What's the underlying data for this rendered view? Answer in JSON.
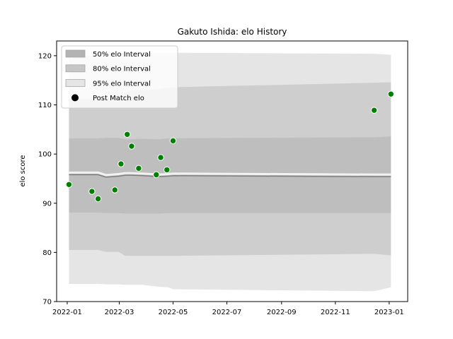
{
  "chart_data": {
    "type": "line",
    "title": "Gakuto Ishida: elo History",
    "xlabel": "",
    "ylabel": "elo score",
    "xlim": [
      "2021-12-20",
      "2023-01-22"
    ],
    "ylim": [
      70,
      123
    ],
    "x_ticks": [
      "2022-01",
      "2022-03",
      "2022-05",
      "2022-07",
      "2022-09",
      "2022-11",
      "2023-01"
    ],
    "y_ticks": [
      70,
      80,
      90,
      100,
      110,
      120
    ],
    "grid": false,
    "legend_position": "top-left",
    "colors": {
      "band_50": "#b3b3b3",
      "band_80": "#cccccc",
      "band_95": "#e5e5e5",
      "mean_line": "#808080",
      "points": "#008000",
      "point_edge": "#ffffff"
    },
    "legend": [
      {
        "key": "band_50",
        "label": "50% elo Interval"
      },
      {
        "key": "band_80",
        "label": "80% elo Interval"
      },
      {
        "key": "band_95",
        "label": "95% elo Interval"
      },
      {
        "key": "points",
        "label": "Post Match elo"
      }
    ],
    "x": [
      "2022-01-03",
      "2022-02-05",
      "2022-02-14",
      "2022-02-28",
      "2022-03-08",
      "2022-03-15",
      "2022-03-28",
      "2022-04-15",
      "2022-04-25",
      "2022-05-02",
      "2022-12-15",
      "2023-01-03"
    ],
    "bands": {
      "mean": [
        95.8,
        95.8,
        95.3,
        95.5,
        95.7,
        95.7,
        95.6,
        95.4,
        95.5,
        95.6,
        95.4,
        95.4
      ],
      "p50_low": [
        88.1,
        88.1,
        88.0,
        88.0,
        87.9,
        87.9,
        87.9,
        87.9,
        88.0,
        88.0,
        88.0,
        88.0
      ],
      "p50_high": [
        103.2,
        103.2,
        103.3,
        103.3,
        103.0,
        103.0,
        103.1,
        103.0,
        103.2,
        103.2,
        103.4,
        103.6
      ],
      "p80_low": [
        80.5,
        80.5,
        80.1,
        80.1,
        79.3,
        79.3,
        79.3,
        79.3,
        79.3,
        79.3,
        79.7,
        79.4
      ],
      "p80_high": [
        111.2,
        111.2,
        111.3,
        111.3,
        112.5,
        113.0,
        113.0,
        113.2,
        113.5,
        113.6,
        114.5,
        114.6
      ],
      "p95_low": [
        73.6,
        73.6,
        73.5,
        73.5,
        73.4,
        73.4,
        73.4,
        73.0,
        72.9,
        72.5,
        72.1,
        72.9
      ],
      "p95_high": [
        119.5,
        120.2,
        120.5,
        120.5,
        120.6,
        120.6,
        120.6,
        120.6,
        120.6,
        120.6,
        120.4,
        120.2
      ]
    },
    "series": [
      {
        "name": "Post Match elo",
        "x": [
          "2022-01-03",
          "2022-01-29",
          "2022-02-05",
          "2022-02-24",
          "2022-03-03",
          "2022-03-10",
          "2022-03-15",
          "2022-03-23",
          "2022-04-12",
          "2022-04-17",
          "2022-04-24",
          "2022-05-01",
          "2022-12-15",
          "2023-01-03"
        ],
        "values": [
          93.8,
          92.4,
          90.9,
          92.7,
          98.0,
          104.0,
          101.6,
          97.1,
          95.8,
          99.3,
          96.8,
          102.7,
          108.9,
          112.2
        ]
      }
    ]
  }
}
